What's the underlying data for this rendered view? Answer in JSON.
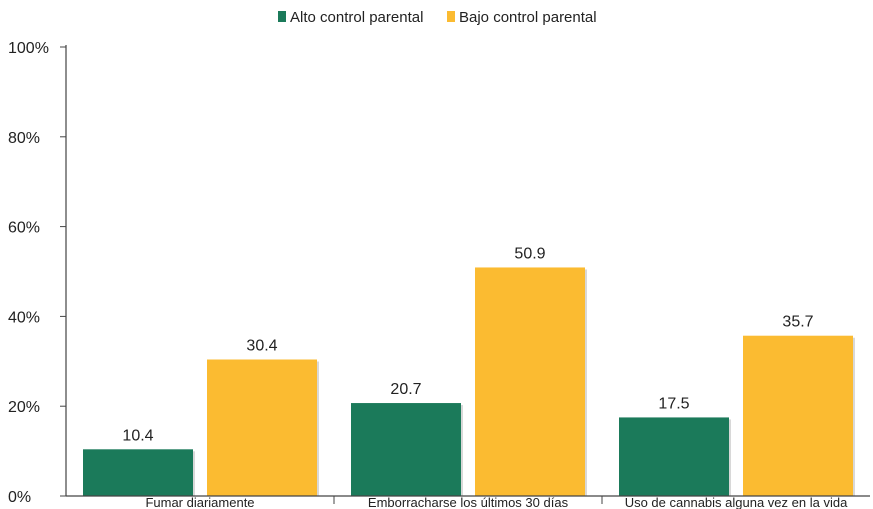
{
  "chart_data": {
    "type": "bar",
    "categories": [
      "Fumar diariamente",
      "Emborracharse los últimos 30 días",
      "Uso de cannabis alguna vez en la vida"
    ],
    "series": [
      {
        "name": "Alto control parental",
        "values": [
          10.4,
          20.7,
          17.5
        ],
        "color": "#1b7a5a"
      },
      {
        "name": "Bajo control parental",
        "values": [
          30.4,
          50.9,
          35.7
        ],
        "color": "#fbbb31"
      }
    ],
    "data_labels": [
      [
        "10.4",
        "20.7",
        "17.5"
      ],
      [
        "30.4",
        "50.9",
        "35.7"
      ]
    ],
    "yticks": [
      "0%",
      "20%",
      "40%",
      "60%",
      "80%",
      "100%"
    ],
    "ylim": [
      0,
      100
    ],
    "legend_position": "top-center",
    "grid": false
  }
}
